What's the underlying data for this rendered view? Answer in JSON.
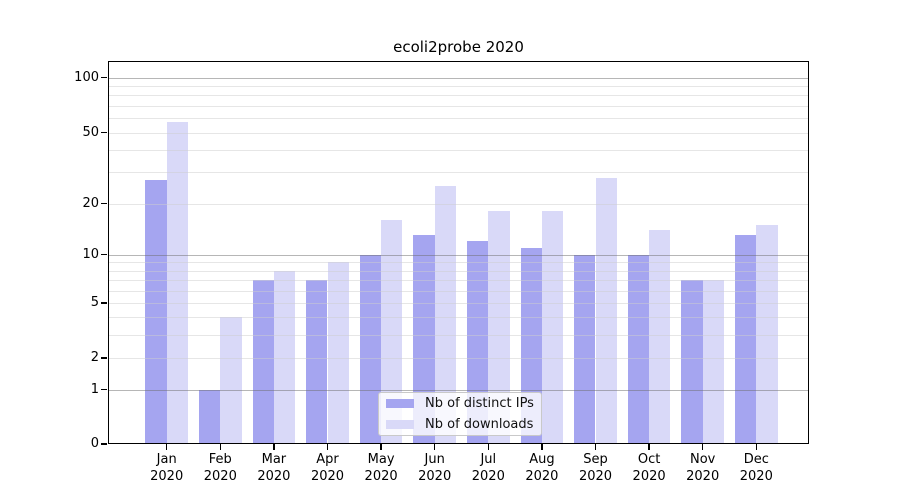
{
  "chart_data": {
    "type": "bar",
    "title": "ecoli2probe 2020",
    "categories": [
      "Jan",
      "Feb",
      "Mar",
      "Apr",
      "May",
      "Jun",
      "Jul",
      "Aug",
      "Sep",
      "Oct",
      "Nov",
      "Dec"
    ],
    "category_year": "2020",
    "series": [
      {
        "name": "Nb of distinct IPs",
        "color": "#a5a5f0",
        "values": [
          27,
          1,
          7,
          7,
          10,
          13,
          12,
          11,
          10,
          10,
          7,
          13
        ]
      },
      {
        "name": "Nb of downloads",
        "color": "#d9d9f8",
        "values": [
          57,
          4,
          8,
          9,
          16,
          25,
          18,
          18,
          28,
          14,
          7,
          15
        ]
      }
    ],
    "y_axis": {
      "scale": "log-like (linear below 1)",
      "tick_labels": [
        "0",
        "1",
        "2",
        "5",
        "10",
        "20",
        "50",
        "100"
      ],
      "tick_values": [
        0,
        1,
        2,
        5,
        10,
        20,
        50,
        100
      ],
      "major_gridline_values": [
        1,
        10,
        100
      ],
      "minor_gridline_values": [
        2,
        3,
        4,
        5,
        6,
        7,
        8,
        9,
        20,
        30,
        40,
        50,
        60,
        70,
        80,
        90
      ],
      "ylim": [
        0,
        120
      ]
    },
    "legend": {
      "position": "lower center",
      "entries": [
        "Nb of distinct IPs",
        "Nb of downloads"
      ]
    },
    "grid": true
  },
  "colors": {
    "background": "#ffffff",
    "spine": "#000000",
    "major_grid": "#c6c6c6",
    "minor_grid": "#eaeaea",
    "bar_distinct_ips": "#a5a5f0",
    "bar_downloads": "#d9d9f8"
  }
}
